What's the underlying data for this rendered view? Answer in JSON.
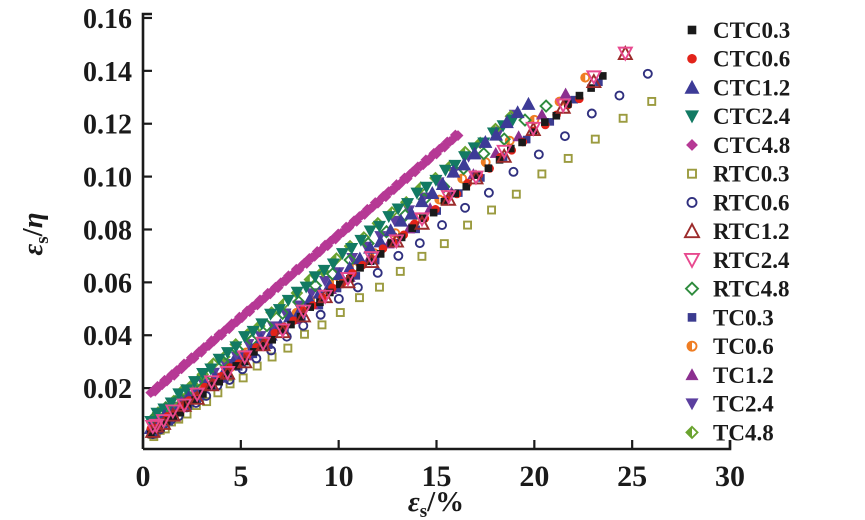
{
  "figure": {
    "background": "#ffffff",
    "text_color": "#1a1a1a",
    "axis_color": "#1a1a1a"
  },
  "axes": {
    "x": {
      "label_symbol": "ε",
      "label_subscript": "s",
      "label_rest": "/%",
      "min": 0,
      "max": 30,
      "tick_values": [
        0,
        5,
        10,
        15,
        20,
        25,
        30
      ],
      "tick_labels": [
        "0",
        "5",
        "10",
        "15",
        "20",
        "25",
        "30"
      ]
    },
    "y": {
      "label_symbol": "ε",
      "label_subscript": "s",
      "label_slash": "/",
      "label_symbol2": "η",
      "min": 0,
      "max": 0.16,
      "tick_values": [
        0.02,
        0.04,
        0.06,
        0.08,
        0.1,
        0.12,
        0.14,
        0.16
      ],
      "tick_labels": [
        "0.02",
        "0.04",
        "0.06",
        "0.08",
        "0.10",
        "0.12",
        "0.14",
        "0.16"
      ]
    }
  },
  "chart_data": {
    "type": "scatter",
    "title": "",
    "xlabel": "εs/%",
    "ylabel": "εs/η",
    "xlim": [
      0,
      30
    ],
    "ylim": [
      0,
      0.16
    ],
    "grid": false,
    "legend_position": "right",
    "series": [
      {
        "name": "CTC0.3",
        "marker": "square",
        "fill": "filled",
        "color": "#1a1a1a",
        "x_start": 0.4,
        "y_start": 0.0025,
        "x_end": 23.5,
        "y_end": 0.1375,
        "n_points": 48,
        "spacing_power": 1.22,
        "bow": 0,
        "marker_size": 7
      },
      {
        "name": "CTC0.6",
        "marker": "circle",
        "fill": "filled",
        "color": "#e2231a",
        "x_start": 0.4,
        "y_start": 0.004,
        "x_end": 22.3,
        "y_end": 0.13,
        "n_points": 46,
        "spacing_power": 1.2,
        "bow": 0,
        "marker_size": 8
      },
      {
        "name": "CTC1.2",
        "marker": "triangle-up",
        "fill": "filled",
        "color": "#3d3b97",
        "x_start": 0.4,
        "y_start": 0.005,
        "x_end": 19.7,
        "y_end": 0.128,
        "n_points": 40,
        "spacing_power": 1.12,
        "bow": -0.004,
        "marker_size": 11
      },
      {
        "name": "CTC2.4",
        "marker": "triangle-down",
        "fill": "filled",
        "color": "#127a63",
        "x_start": 0.4,
        "y_start": 0.008,
        "x_end": 18.9,
        "y_end": 0.122,
        "n_points": 42,
        "spacing_power": 1.1,
        "bow": 0.002,
        "marker_size": 10
      },
      {
        "name": "CTC4.8",
        "marker": "diamond",
        "fill": "filled",
        "color": "#b63995",
        "x_start": 0.4,
        "y_start": 0.018,
        "x_end": 16.1,
        "y_end": 0.116,
        "n_points": 120,
        "spacing_power": 1.04,
        "bow": 0,
        "marker_size": 8
      },
      {
        "name": "RTC0.3",
        "marker": "square",
        "fill": "open",
        "color": "#9b9b3f",
        "x_start": 0.5,
        "y_start": 0.002,
        "x_end": 26.0,
        "y_end": 0.129,
        "n_points": 32,
        "spacing_power": 1.8,
        "bow": -0.001,
        "marker_size": 7
      },
      {
        "name": "RTC0.6",
        "marker": "circle",
        "fill": "open",
        "color": "#30307f",
        "x_start": 0.5,
        "y_start": 0.003,
        "x_end": 25.8,
        "y_end": 0.139,
        "n_points": 32,
        "spacing_power": 1.8,
        "bow": -0.001,
        "marker_size": 8
      },
      {
        "name": "RTC1.2",
        "marker": "triangle-up",
        "fill": "open",
        "color": "#9c2b2b",
        "x_start": 0.5,
        "y_start": 0.004,
        "x_end": 24.65,
        "y_end": 0.146,
        "n_points": 24,
        "spacing_power": 1.55,
        "bow": -0.002,
        "marker_size": 11
      },
      {
        "name": "RTC2.4",
        "marker": "triangle-down",
        "fill": "open",
        "color": "#e8498f",
        "x_start": 0.5,
        "y_start": 0.005,
        "x_end": 24.65,
        "y_end": 0.147,
        "n_points": 24,
        "spacing_power": 1.55,
        "bow": -0.002,
        "marker_size": 11
      },
      {
        "name": "RTC4.8",
        "marker": "diamond",
        "fill": "open",
        "color": "#2e8b3d",
        "x_start": 0.5,
        "y_start": 0.008,
        "x_end": 20.6,
        "y_end": 0.127,
        "n_points": 26,
        "spacing_power": 1.35,
        "bow": 0.001,
        "marker_size": 9
      },
      {
        "name": "TC0.3",
        "marker": "square",
        "fill": "filled",
        "color": "#3b3b8f",
        "x_start": 0.5,
        "y_start": 0.003,
        "x_end": 23.3,
        "y_end": 0.136,
        "n_points": 28,
        "spacing_power": 1.5,
        "bow": -0.001,
        "marker_size": 7
      },
      {
        "name": "TC0.6",
        "marker": "circle",
        "fill": "half-left",
        "color": "#ef7d23",
        "x_start": 0.5,
        "y_start": 0.005,
        "x_end": 22.6,
        "y_end": 0.137,
        "n_points": 26,
        "spacing_power": 1.5,
        "bow": -0.001,
        "marker_size": 8
      },
      {
        "name": "TC1.2",
        "marker": "triangle-up",
        "fill": "filled",
        "color": "#8b2f8f",
        "x_start": 0.5,
        "y_start": 0.006,
        "x_end": 21.6,
        "y_end": 0.131,
        "n_points": 26,
        "spacing_power": 1.45,
        "bow": -0.003,
        "marker_size": 9
      },
      {
        "name": "TC2.4",
        "marker": "triangle-down",
        "fill": "filled",
        "color": "#5b3f9f",
        "x_start": 0.5,
        "y_start": 0.007,
        "x_end": 19.0,
        "y_end": 0.123,
        "n_points": 30,
        "spacing_power": 1.25,
        "bow": -0.002,
        "marker_size": 9
      },
      {
        "name": "TC4.8",
        "marker": "diamond",
        "fill": "half-left",
        "color": "#6aa32f",
        "x_start": 0.5,
        "y_start": 0.0085,
        "x_end": 18.8,
        "y_end": 0.1225,
        "n_points": 30,
        "spacing_power": 1.25,
        "bow": 0.002,
        "marker_size": 8
      }
    ],
    "draw_order": [
      5,
      6,
      10,
      11,
      12,
      13,
      14,
      9,
      3,
      2,
      1,
      0,
      7,
      8,
      4
    ]
  }
}
